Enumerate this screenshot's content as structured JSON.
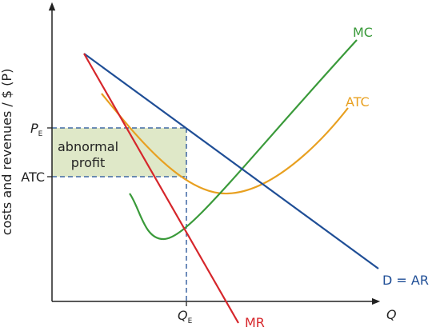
{
  "y_axis": {
    "label": "costs and revenues / $ (P)"
  },
  "x_axis": {
    "label": "Q"
  },
  "y_ticks": [
    {
      "label": "P",
      "subscript": "E"
    },
    {
      "label": "ATC"
    }
  ],
  "x_ticks": [
    {
      "label": "Q",
      "subscript": "E"
    }
  ],
  "region": {
    "lines": [
      "abnormal",
      "profit"
    ]
  },
  "curves": {
    "mc": "MC",
    "atc": "ATC",
    "mr": "MR",
    "demand": "D = AR"
  }
}
